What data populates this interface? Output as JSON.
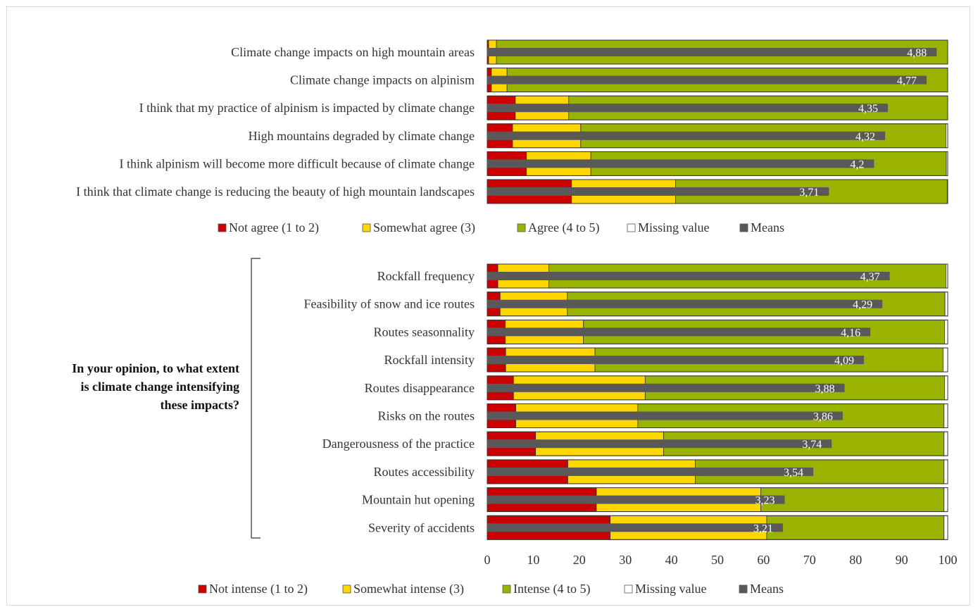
{
  "question": [
    "In your opinion, to what extent",
    "is climate change intensifying",
    "these impacts?"
  ],
  "colors": {
    "not": "#cc0000",
    "somewhat": "#ffd700",
    "agree": "#99b300",
    "missing": "#ffffff",
    "means": "#595959"
  },
  "chart_data": [
    {
      "type": "bar",
      "orientation": "horizontal",
      "stacked": true,
      "categories": [
        "Climate change impacts on high mountain areas",
        "Climate change impacts on alpinism",
        "I think that my practice of alpinism is impacted by climate change",
        "High mountains degraded by climate change",
        "I think alpinism will become more difficult because of climate change",
        "I think that climate change is reducing the beauty of high mountain landscapes"
      ],
      "series": [
        {
          "name": "Not agree (1 to 2)",
          "values": [
            0.3,
            0.9,
            6.1,
            5.5,
            8.5,
            18.3
          ]
        },
        {
          "name": "Somewhat agree (3)",
          "values": [
            1.7,
            3.4,
            11.6,
            14.8,
            14.0,
            22.6
          ]
        },
        {
          "name": "Agree (4 to 5)",
          "values": [
            98.0,
            95.7,
            82.3,
            79.3,
            77.2,
            59.0
          ]
        },
        {
          "name": "Missing value",
          "values": [
            0.0,
            0.0,
            0.0,
            0.4,
            0.3,
            0.1
          ]
        }
      ],
      "means": {
        "name": "Means",
        "values": [
          4.88,
          4.77,
          4.35,
          4.32,
          4.2,
          3.71
        ],
        "labels": [
          "4,88",
          "4,77",
          "4,35",
          "4,32",
          "4,2",
          "3,71"
        ]
      },
      "xlim": [
        0,
        100
      ]
    },
    {
      "type": "bar",
      "orientation": "horizontal",
      "stacked": true,
      "categories": [
        "Rockfall frequency",
        "Feasibility of snow and ice routes",
        "Routes seasonnality",
        "Rockfall intensity",
        "Routes disappearance",
        "Risks on the routes",
        "Dangerousness of the practice",
        "Routes accessibility",
        "Mountain hut opening",
        "Severity of accidents"
      ],
      "series": [
        {
          "name": "Not intense (1 to 2)",
          "values": [
            2.3,
            2.8,
            3.9,
            4.0,
            5.7,
            6.2,
            10.5,
            17.5,
            23.7,
            26.7
          ]
        },
        {
          "name": "Somewhat intense (3)",
          "values": [
            11.1,
            14.6,
            17.0,
            19.4,
            28.6,
            26.5,
            27.8,
            27.7,
            35.7,
            34.0
          ]
        },
        {
          "name": "Intense (4 to 5)",
          "values": [
            86.2,
            82.0,
            78.4,
            75.6,
            65.0,
            66.5,
            60.9,
            54.0,
            39.8,
            38.5
          ]
        },
        {
          "name": "Missing value",
          "values": [
            0.4,
            0.6,
            0.7,
            1.0,
            0.7,
            0.8,
            0.8,
            0.8,
            0.8,
            0.8
          ]
        }
      ],
      "means": {
        "name": "Means",
        "values": [
          4.37,
          4.29,
          4.16,
          4.09,
          3.88,
          3.86,
          3.74,
          3.54,
          3.23,
          3.21
        ],
        "labels": [
          "4,37",
          "4,29",
          "4,16",
          "4,09",
          "3,88",
          "3,86",
          "3,74",
          "3,54",
          "3,23",
          "3,21"
        ]
      },
      "xlim": [
        0,
        100
      ],
      "xticks": [
        0,
        10,
        20,
        30,
        40,
        50,
        60,
        70,
        80,
        90,
        100
      ]
    }
  ]
}
